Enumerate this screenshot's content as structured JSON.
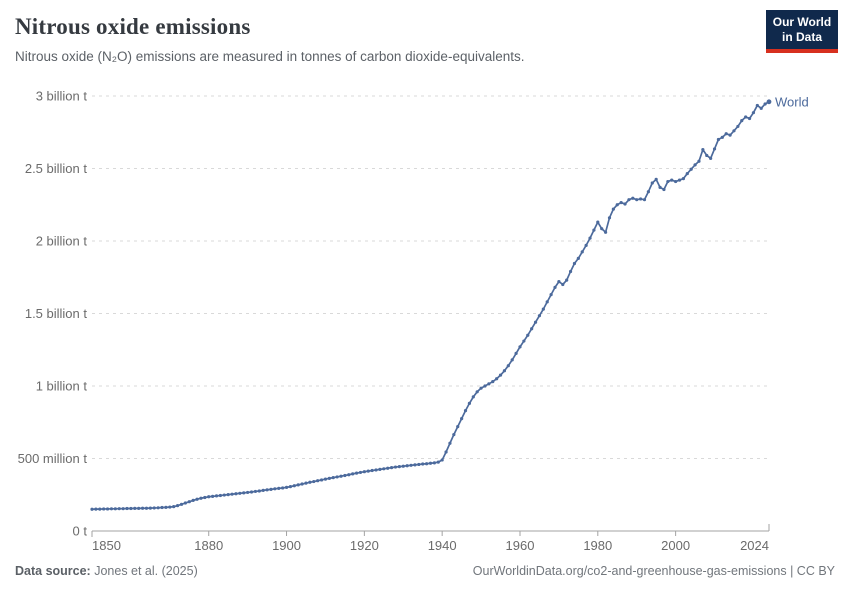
{
  "header": {
    "title": "Nitrous oxide emissions",
    "subtitle": "Nitrous oxide (N₂O) emissions are measured in tonnes of carbon dioxide-equivalents.",
    "logo": {
      "line1": "Our World",
      "line2": "in Data",
      "bg_color": "#10294c",
      "bar_color": "#d7301f"
    }
  },
  "footer": {
    "source_label": "Data source:",
    "source_value": " Jones et al. (2025)",
    "license_text": "OurWorldinData.org/co2-and-greenhouse-gas-emissions | CC BY"
  },
  "chart_data": {
    "type": "line",
    "title": "Nitrous oxide emissions",
    "subtitle": "Nitrous oxide (N₂O) emissions are measured in tonnes of carbon dioxide-equivalents.",
    "xlabel": "",
    "ylabel": "",
    "unit": "tonnes of carbon dioxide-equivalents",
    "grid": "dashed horizontal",
    "legend_position": "end-of-line label",
    "axis_color": "#a3a3a3",
    "gridline_color": "#d9d9d9",
    "tick_label_color": "#6b6b6b",
    "x": {
      "min": 1850,
      "max": 2024,
      "ticks": [
        1850,
        1880,
        1900,
        1920,
        1940,
        1960,
        1980,
        2000,
        2024
      ]
    },
    "y": {
      "min": 0,
      "max": 3000,
      "values_in": "million tonnes CO₂-equivalents",
      "ticks": [
        {
          "value": 0,
          "label": "0 t"
        },
        {
          "value": 500,
          "label": "500 million t"
        },
        {
          "value": 1000,
          "label": "1 billion t"
        },
        {
          "value": 1500,
          "label": "1.5 billion t"
        },
        {
          "value": 2000,
          "label": "2 billion t"
        },
        {
          "value": 2500,
          "label": "2.5 billion t"
        },
        {
          "value": 3000,
          "label": "3 billion t"
        }
      ]
    },
    "series": [
      {
        "name": "World",
        "color": "#4c6a9c",
        "start_year": 1850,
        "end_year": 2024,
        "values_mt": [
          150,
          151,
          151,
          152,
          152,
          153,
          153,
          154,
          154,
          155,
          155,
          156,
          156,
          157,
          157,
          158,
          159,
          160,
          162,
          163,
          165,
          168,
          175,
          184,
          193,
          202,
          211,
          219,
          226,
          231,
          236,
          239,
          242,
          245,
          248,
          251,
          254,
          257,
          260,
          263,
          266,
          269,
          273,
          276,
          280,
          284,
          287,
          291,
          294,
          297,
          301,
          306,
          312,
          318,
          324,
          330,
          336,
          341,
          347,
          352,
          358,
          363,
          368,
          373,
          378,
          383,
          388,
          394,
          399,
          404,
          409,
          413,
          417,
          421,
          425,
          429,
          433,
          437,
          441,
          444,
          447,
          450,
          453,
          456,
          459,
          462,
          464,
          467,
          470,
          475,
          490,
          545,
          605,
          665,
          720,
          775,
          830,
          880,
          925,
          960,
          985,
          1000,
          1015,
          1030,
          1050,
          1075,
          1105,
          1140,
          1180,
          1225,
          1270,
          1310,
          1350,
          1395,
          1440,
          1485,
          1530,
          1580,
          1630,
          1680,
          1720,
          1700,
          1730,
          1790,
          1845,
          1880,
          1925,
          1970,
          2020,
          2075,
          2130,
          2085,
          2060,
          2160,
          2220,
          2250,
          2265,
          2255,
          2285,
          2295,
          2285,
          2290,
          2285,
          2340,
          2400,
          2425,
          2370,
          2355,
          2410,
          2420,
          2410,
          2420,
          2430,
          2465,
          2495,
          2525,
          2550,
          2630,
          2590,
          2570,
          2635,
          2700,
          2715,
          2740,
          2730,
          2760,
          2790,
          2830,
          2855,
          2845,
          2885,
          2935,
          2915,
          2945,
          2960
        ]
      }
    ]
  }
}
